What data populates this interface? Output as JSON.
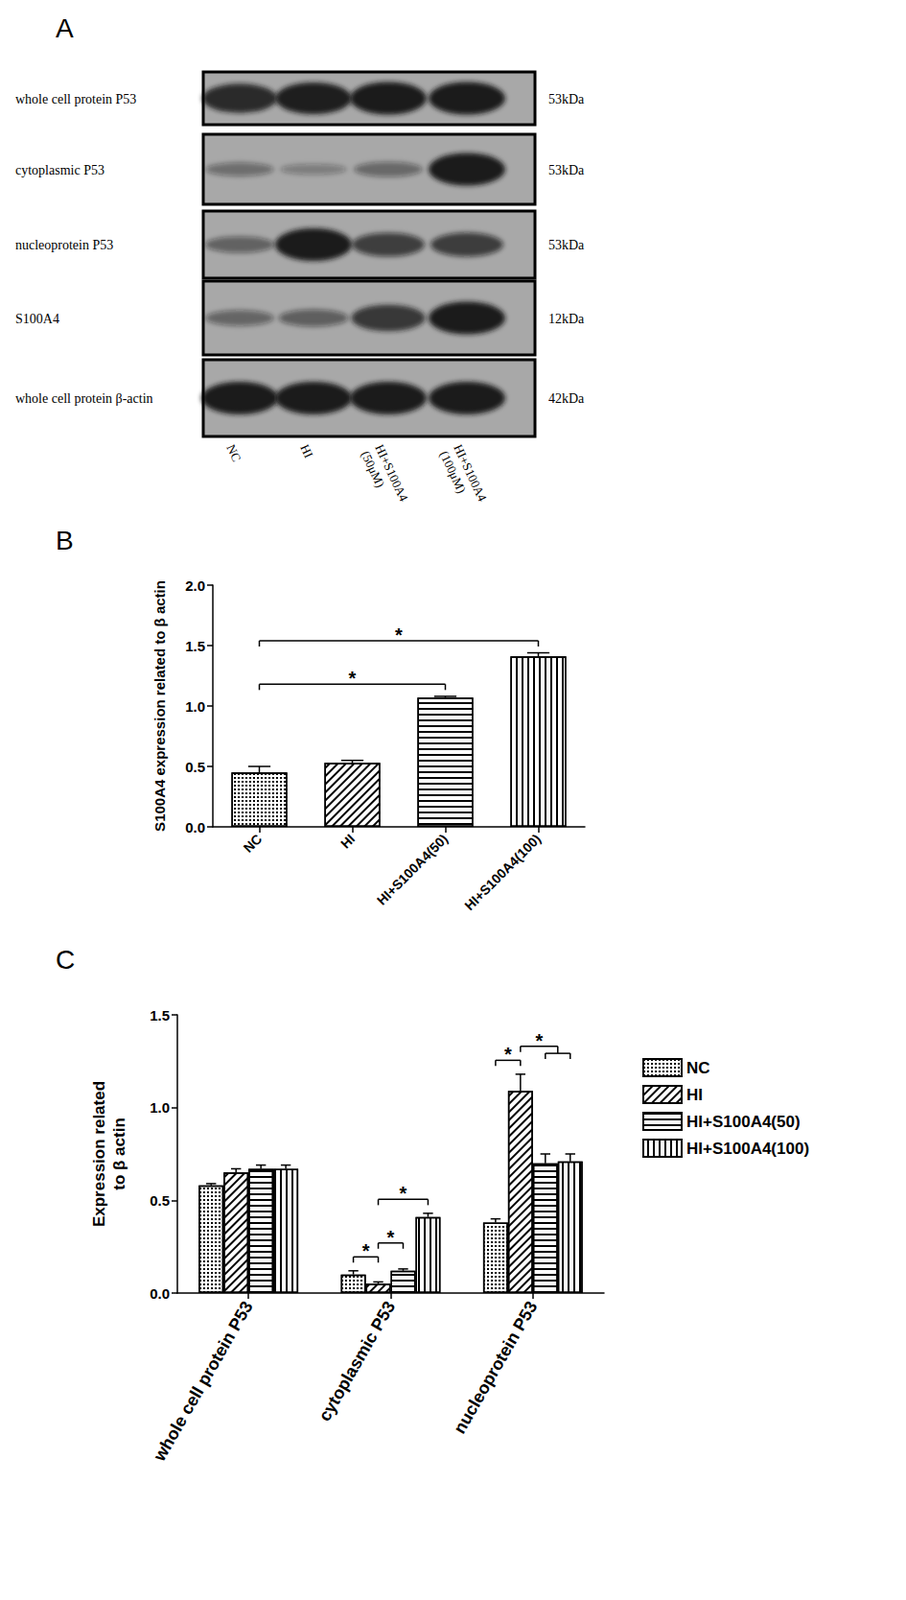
{
  "panel_labels": [
    "A",
    "B",
    "C"
  ],
  "blot": {
    "rows": [
      {
        "label": "whole cell protein P53",
        "size": "53kDa"
      },
      {
        "label": "cytoplasmic P53",
        "size": "53kDa"
      },
      {
        "label": "nucleoprotein P53",
        "size": "53kDa"
      },
      {
        "label": "S100A4",
        "size": "12kDa"
      },
      {
        "label": "whole cell protein β-actin",
        "size": "42kDa"
      }
    ],
    "lanes": [
      [
        "NC"
      ],
      [
        "HI"
      ],
      [
        "HI+S100A4",
        "(50μM)"
      ],
      [
        "HI+S100A4",
        "(100μM)"
      ]
    ]
  },
  "chart_data": [
    {
      "type": "bar",
      "categories": [
        "NC",
        "HI",
        "HI+S100A4(50)",
        "HI+S100A4(100)"
      ],
      "values": [
        0.45,
        0.53,
        1.07,
        1.41
      ],
      "errors": [
        0.05,
        0.02,
        0.01,
        0.03
      ],
      "color": "#000000",
      "y_label": "S100A4 expression related to β actin",
      "ylim": [
        0,
        2
      ],
      "yticks": [
        {
          "value": 0,
          "label": "0.0"
        },
        0.5,
        {
          "value": 1,
          "label": "1.0"
        },
        1.5,
        {
          "value": 2,
          "label": "2.0"
        }
      ],
      "grid": false,
      "significance": [
        {
          "from": [
            "NC"
          ],
          "to": [
            "HI+S100A4(50)"
          ],
          "label": "*"
        },
        {
          "from": [
            "NC"
          ],
          "to": [
            "HI+S100A4(100)"
          ],
          "label": "*"
        }
      ]
    },
    {
      "type": "bar",
      "categories": [
        "whole cell protein P53",
        "cytoplasmic P53",
        "nucleoprotein P53"
      ],
      "series": [
        {
          "name": "NC",
          "color": "#000000",
          "values": [
            0.58,
            0.1,
            0.38
          ],
          "errors": [
            0.01,
            0.02,
            0.02
          ]
        },
        {
          "name": "HI",
          "color": "#000000",
          "values": [
            0.65,
            0.05,
            1.09
          ],
          "errors": [
            0.02,
            0.01,
            0.09
          ]
        },
        {
          "name": "HI+S100A4(50)",
          "color": "#000000",
          "values": [
            0.67,
            0.12,
            0.7
          ],
          "errors": [
            0.02,
            0.01,
            0.05
          ]
        },
        {
          "name": "HI+S100A4(100)",
          "color": "#000000",
          "values": [
            0.67,
            0.41,
            0.71
          ],
          "errors": [
            0.02,
            0.02,
            0.04
          ]
        }
      ],
      "y_label": "Expression related\nto β actin",
      "ylim": [
        0,
        1.5
      ],
      "yticks": [
        {
          "value": 0,
          "label": "0.0"
        },
        0.5,
        {
          "value": 1,
          "label": "1.0"
        },
        1.5
      ],
      "grid": false,
      "legend": "right",
      "significance": [
        {
          "category": "cytoplasmic P53",
          "from": [
            "NC"
          ],
          "to": [
            "HI"
          ],
          "label": "*"
        },
        {
          "category": "cytoplasmic P53",
          "from": [
            "HI"
          ],
          "to": [
            "HI+S100A4(50)"
          ],
          "label": "*"
        },
        {
          "category": "cytoplasmic P53",
          "from": [
            "HI"
          ],
          "to": [
            "HI+S100A4(100)"
          ],
          "label": "*"
        },
        {
          "category": "nucleoprotein P53",
          "from": [
            "NC"
          ],
          "to": [
            "HI"
          ],
          "label": "*"
        },
        {
          "category": "nucleoprotein P53",
          "from": [
            "HI"
          ],
          "to": [
            "HI+S100A4(50)",
            "HI+S100A4(100)"
          ],
          "label": "*"
        }
      ]
    }
  ]
}
